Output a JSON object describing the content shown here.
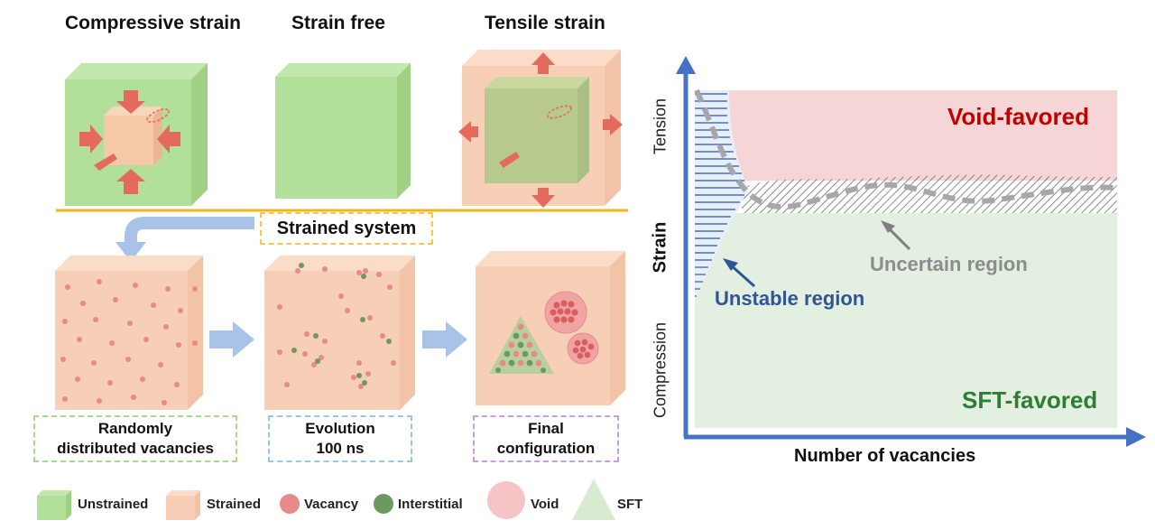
{
  "top_titles": {
    "compressive": "Compressive strain",
    "free": "Strain free",
    "tensile": "Tensile strain"
  },
  "strained_system": "Strained system",
  "process": {
    "step1_line1": "Randomly",
    "step1_line2": "distributed vacancies",
    "step2_line1": "Evolution",
    "step2_line2": "100 ns",
    "step3_line1": "Final",
    "step3_line2": "configuration"
  },
  "legend": {
    "unstrained": "Unstrained",
    "strained": "Strained",
    "vacancy": "Vacancy",
    "interstitial": "Interstitial",
    "void": "Void",
    "sft": "SFT"
  },
  "phase_diagram": {
    "void_favored": "Void-favored",
    "sft_favored": "SFT-favored",
    "uncertain_region": "Uncertain region",
    "unstable_region": "Unstable region",
    "y_axis_label": "Strain",
    "y_axis_top": "Tension",
    "y_axis_bottom": "Compression",
    "x_axis_label": "Number of vacancies"
  },
  "colors": {
    "unstrained_green": "#a9d88f",
    "strained_peach": "#f7c9a9",
    "vacancy_red": "#e8898a",
    "interstitial_green": "#6a9a5e",
    "void_pink": "#f0a4a4",
    "sft_green": "#d8ebd1",
    "axis_blue": "#4472c4",
    "void_region": "#f6d5d6",
    "sft_region": "#e3efe1",
    "divider_gold": "#f2b619"
  }
}
